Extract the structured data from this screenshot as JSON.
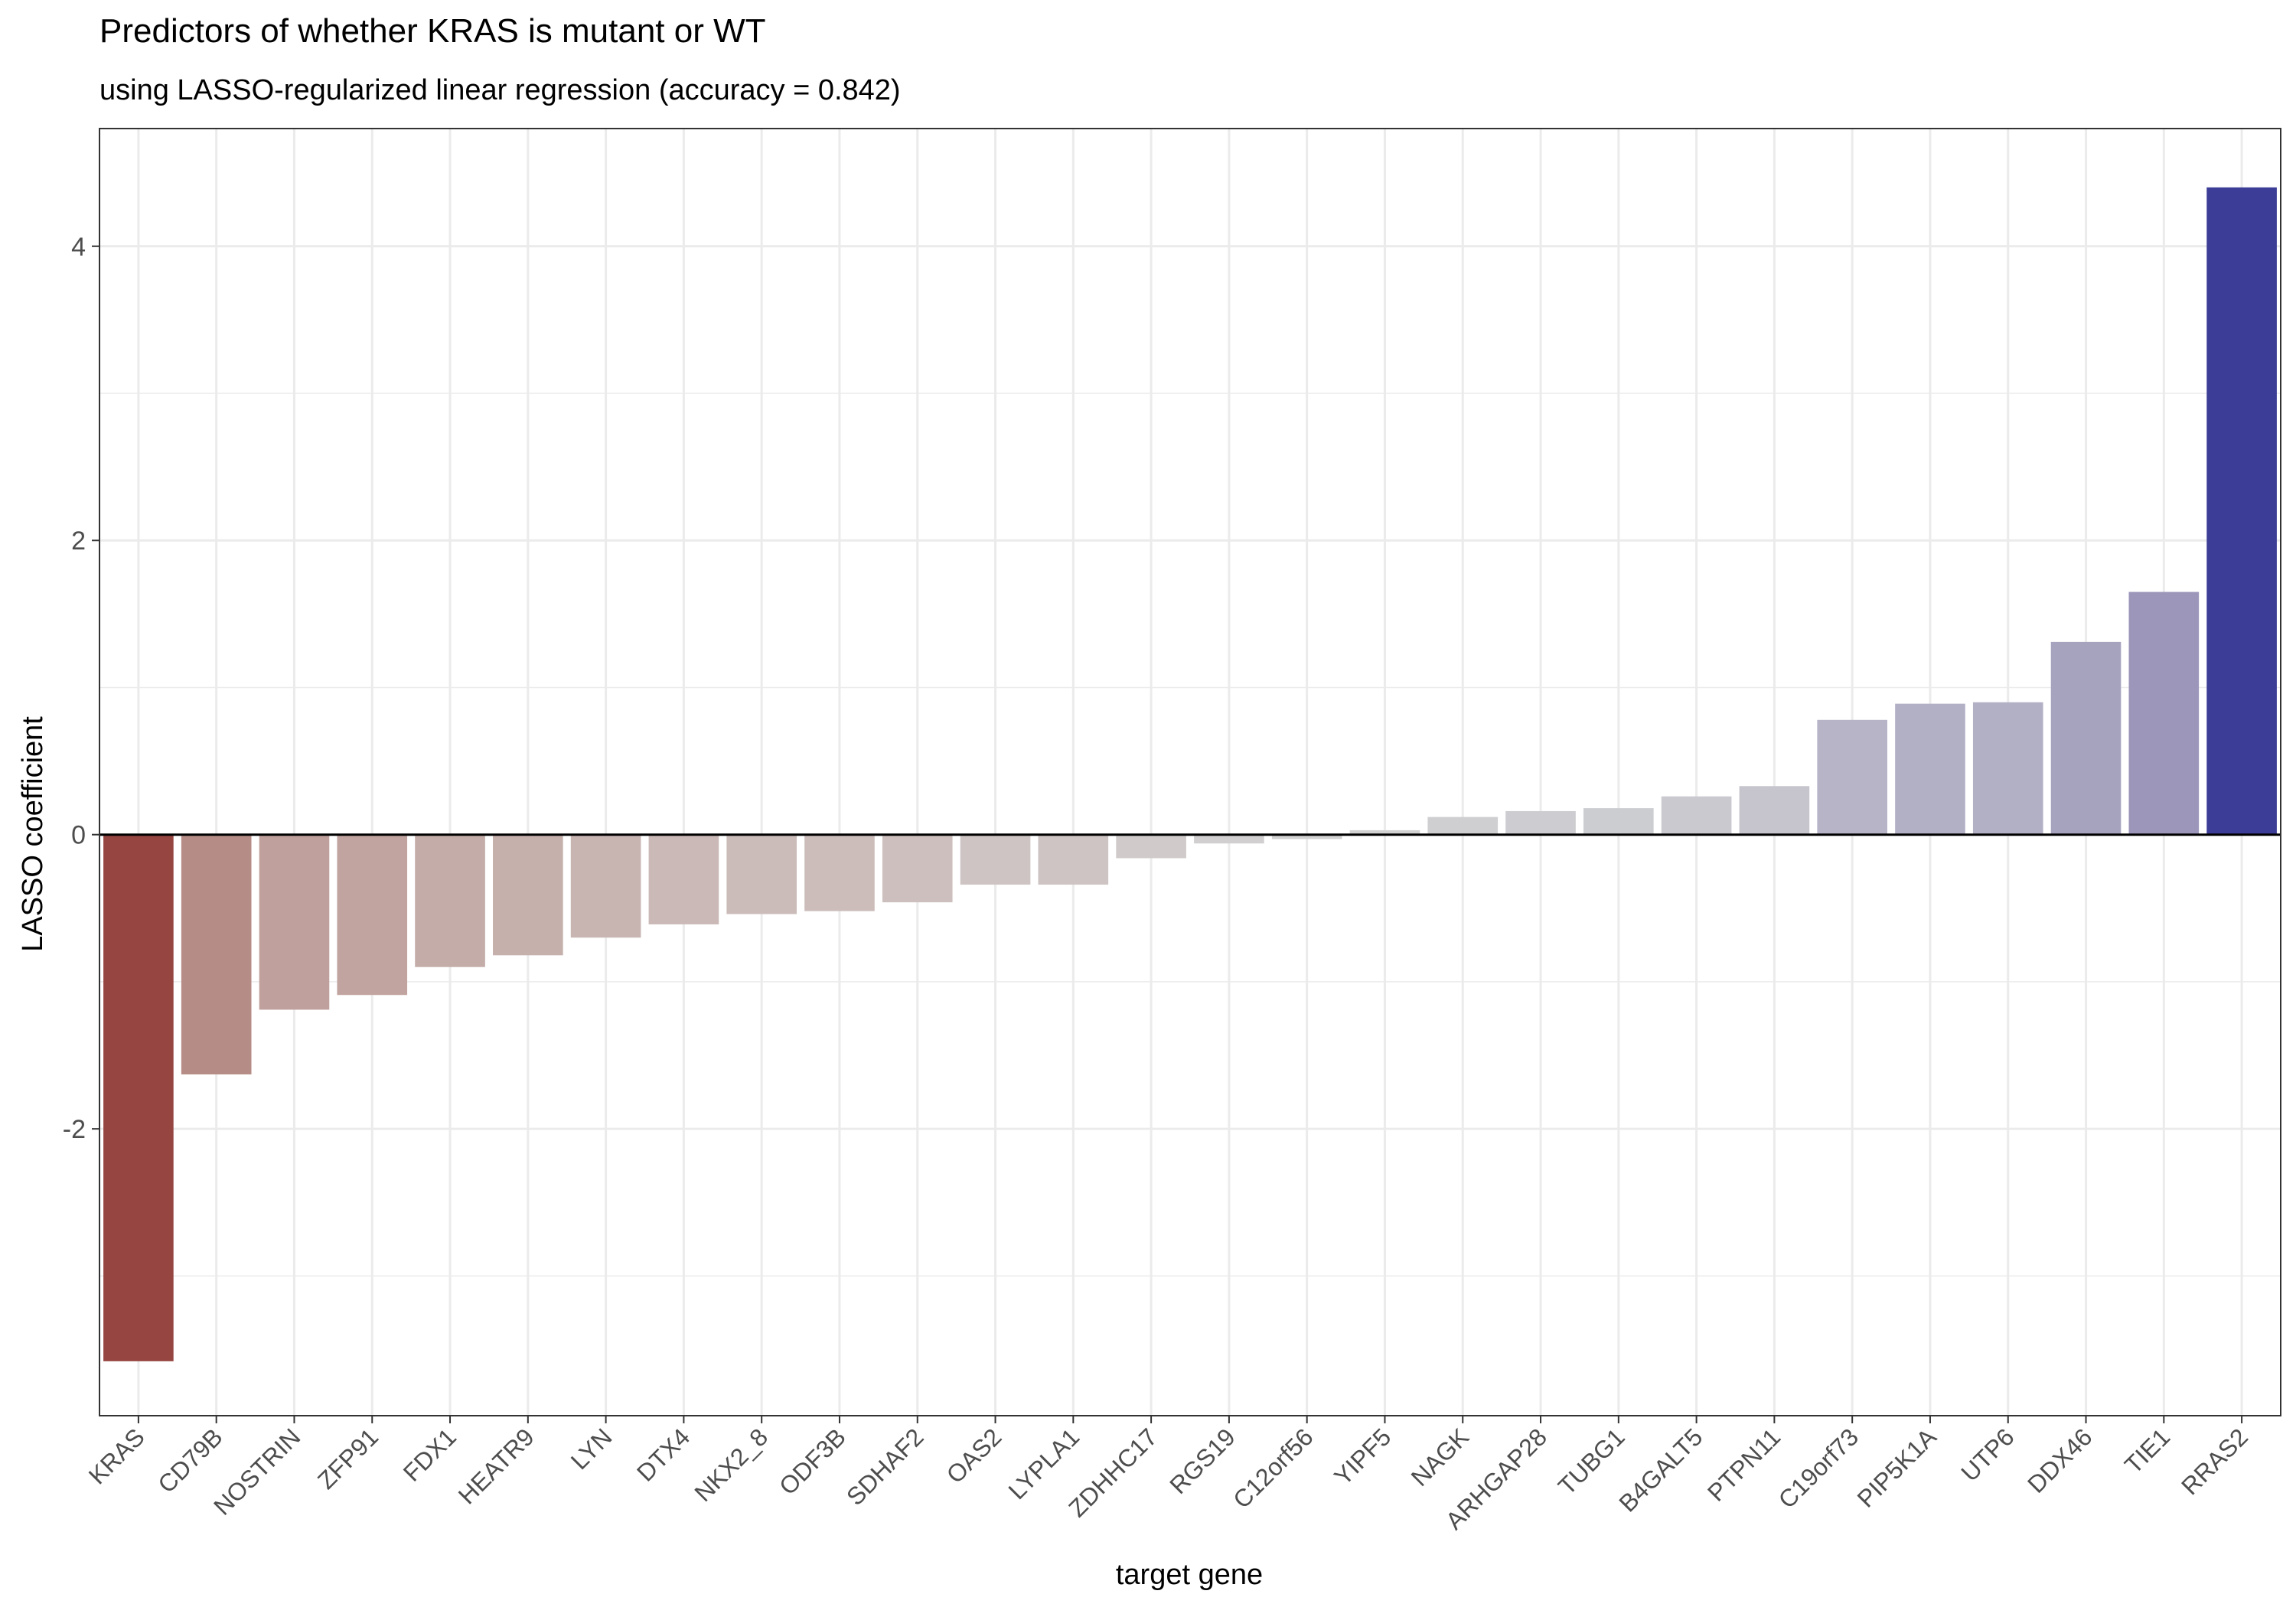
{
  "chart_data": {
    "type": "bar",
    "title": "Predictors of whether KRAS is mutant or WT",
    "subtitle": "using LASSO-regularized linear regression (accuracy = 0.842)",
    "xlabel": "target gene",
    "ylabel": "LASSO coefficient",
    "ylim": [
      -3.95,
      4.8
    ],
    "yticks": [
      -2,
      0,
      2,
      4
    ],
    "ytick_labels": [
      "-2",
      "0",
      "2",
      "4"
    ],
    "grid": true,
    "categories": [
      "KRAS",
      "CD79B",
      "NOSTRIN",
      "ZFP91",
      "FDX1",
      "HEATR9",
      "LYN",
      "DTX4",
      "NKX2_8",
      "ODF3B",
      "SDHAF2",
      "OAS2",
      "LYPLA1",
      "ZDHHC17",
      "RGS19",
      "C12orf56",
      "YIPF5",
      "NAGK",
      "ARHGAP28",
      "TUBG1",
      "B4GALT5",
      "PTPN11",
      "C19orf73",
      "PIP5K1A",
      "UTP6",
      "DDX46",
      "TIE1",
      "RRAS2"
    ],
    "values": [
      -3.58,
      -1.63,
      -1.19,
      -1.09,
      -0.9,
      -0.82,
      -0.7,
      -0.61,
      -0.54,
      -0.52,
      -0.46,
      -0.34,
      -0.34,
      -0.16,
      -0.06,
      -0.03,
      0.03,
      0.12,
      0.16,
      0.18,
      0.26,
      0.33,
      0.78,
      0.89,
      0.9,
      1.31,
      1.65,
      4.4
    ],
    "colors": [
      "#964541",
      "#b68c86",
      "#c0a09c",
      "#c1a4a0",
      "#c4aca8",
      "#c6b0ac",
      "#c8b5b2",
      "#cab9b6",
      "#cbbcba",
      "#ccbdbb",
      "#cdbfbd",
      "#cec4c3",
      "#cec4c3",
      "#d0cbca",
      "#d1cfcf",
      "#d2d1d1",
      "#d2d2d3",
      "#cfcfd2",
      "#cdcdd1",
      "#cccdd1",
      "#c9c9cf",
      "#c6c5cd",
      "#b6b4c6",
      "#b2b0c5",
      "#b2b0c5",
      "#a6a3bf",
      "#9c96ba",
      "#3c3d96"
    ]
  }
}
